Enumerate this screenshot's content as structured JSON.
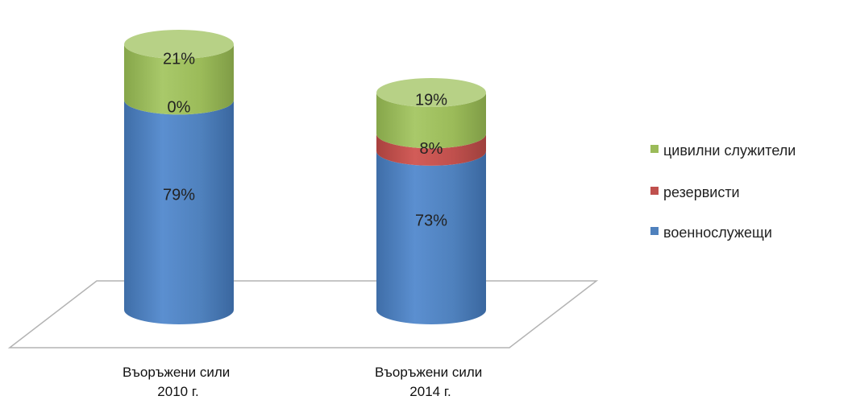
{
  "chart_data": {
    "type": "bar",
    "stacked": true,
    "percent": true,
    "style": "3d-cylinder",
    "categories": [
      [
        "Въоръжени сили",
        "2010 г."
      ],
      [
        "Въоръжени сили",
        "2014 г."
      ]
    ],
    "series": [
      {
        "name": "военнослужещи",
        "values": [
          79,
          73
        ],
        "labels": [
          "79%",
          "73%"
        ],
        "color": "#4f81bd"
      },
      {
        "name": "резервисти",
        "values": [
          0,
          8
        ],
        "labels": [
          "0%",
          "8%"
        ],
        "color": "#c0504d"
      },
      {
        "name": "цивилни служители",
        "values": [
          21,
          19
        ],
        "labels": [
          "21%",
          "19%"
        ],
        "color": "#9bbb59"
      }
    ],
    "legend_order": [
      "цивилни служители",
      "резервисти",
      "военнослужещи"
    ],
    "legend_position": "right",
    "ylim": [
      0,
      100
    ],
    "grid": false
  }
}
